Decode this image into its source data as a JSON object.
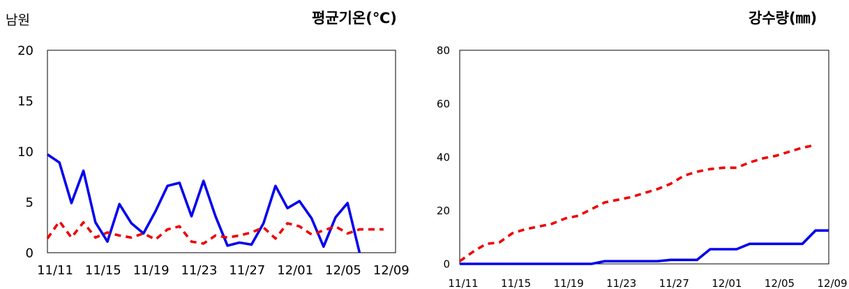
{
  "region_label": "남원",
  "chart_data": [
    {
      "type": "line",
      "title": "평균기온(℃)",
      "xlabel": "",
      "ylabel": "",
      "ylim": [
        0,
        20
      ],
      "y_ticks": [
        "0",
        "5",
        "10",
        "15",
        "20"
      ],
      "x_ticks": [
        "11/11",
        "11/15",
        "11/19",
        "11/23",
        "11/27",
        "12/01",
        "12/05",
        "12/09"
      ],
      "x_range": [
        0,
        29
      ],
      "grid": false,
      "series": [
        {
          "color": "#0000ee",
          "style": "solid",
          "x": [
            0,
            1,
            2,
            3,
            4,
            5,
            6,
            7,
            8,
            9,
            10,
            11,
            12,
            13,
            14,
            15,
            16,
            17,
            18,
            19,
            20,
            21,
            22,
            23,
            24,
            25,
            26
          ],
          "values": [
            9.7,
            8.9,
            4.9,
            8.1,
            3.0,
            1.1,
            4.8,
            2.9,
            1.9,
            4.1,
            6.6,
            6.9,
            3.6,
            7.1,
            3.6,
            0.7,
            1.0,
            0.8,
            2.9,
            6.6,
            4.4,
            5.1,
            3.4,
            0.6,
            3.5,
            4.9,
            0.0
          ]
        },
        {
          "color": "#ee0000",
          "style": "dashed",
          "x": [
            0,
            1,
            2,
            3,
            4,
            5,
            6,
            7,
            8,
            9,
            10,
            11,
            12,
            13,
            14,
            15,
            16,
            17,
            18,
            19,
            20,
            21,
            22,
            23,
            24,
            25,
            26,
            27,
            28
          ],
          "values": [
            1.4,
            3.1,
            1.5,
            3.0,
            1.5,
            2.0,
            1.7,
            1.5,
            1.9,
            1.3,
            2.3,
            2.6,
            1.1,
            0.9,
            1.7,
            1.5,
            1.7,
            2.0,
            2.5,
            1.4,
            2.9,
            2.6,
            1.8,
            2.2,
            2.6,
            1.9,
            2.3,
            2.3,
            2.3
          ]
        }
      ]
    },
    {
      "type": "line",
      "title": "강수량(㎜)",
      "xlabel": "",
      "ylabel": "",
      "ylim": [
        0,
        80
      ],
      "y_ticks": [
        "0",
        "20",
        "40",
        "60",
        "80"
      ],
      "x_ticks": [
        "11/11",
        "11/15",
        "11/19",
        "11/23",
        "11/27",
        "12/01",
        "12/05",
        "12/09"
      ],
      "x_range": [
        0,
        28
      ],
      "grid": false,
      "series": [
        {
          "color": "#0000ee",
          "style": "solid",
          "x": [
            0,
            1,
            2,
            3,
            4,
            5,
            6,
            7,
            8,
            9,
            10,
            11,
            12,
            13,
            14,
            15,
            16,
            17,
            18,
            19,
            20,
            21,
            22,
            23,
            24,
            25,
            26,
            27,
            28
          ],
          "values": [
            0,
            0,
            0,
            0,
            0,
            0,
            0,
            0,
            0,
            0,
            0,
            1,
            1,
            1,
            1,
            1,
            1.5,
            1.5,
            1.5,
            5.5,
            5.5,
            5.5,
            7.5,
            7.5,
            7.5,
            7.5,
            7.5,
            12.5,
            12.5
          ]
        },
        {
          "color": "#ee0000",
          "style": "dashed",
          "x": [
            0,
            1,
            2,
            3,
            4,
            5,
            6,
            7,
            8,
            9,
            10,
            11,
            12,
            13,
            14,
            15,
            16,
            17,
            18,
            19,
            20,
            21,
            22,
            23,
            24,
            25,
            26,
            27
          ],
          "values": [
            1,
            4.5,
            7.5,
            8,
            11.5,
            13,
            14,
            15,
            17,
            18,
            20.5,
            23,
            24,
            25,
            26.5,
            28,
            30,
            33,
            34.5,
            35.5,
            36,
            36,
            38,
            39.5,
            40.5,
            42,
            43.5,
            44.5
          ]
        }
      ]
    }
  ]
}
